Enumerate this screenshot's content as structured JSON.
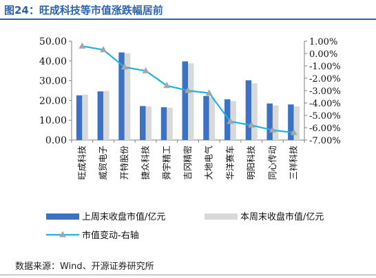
{
  "header": {
    "title": "图24：旺成科技等市值涨跌幅居前"
  },
  "footer": {
    "source": "数据来源：Wind、开源证券研究所"
  },
  "chart_data": {
    "type": "bar",
    "categories": [
      "旺成科技",
      "威贸电子",
      "开特股份",
      "捷众科技",
      "舜宇精工",
      "吉冈精密",
      "大地电气",
      "华洋赛车",
      "明阳科技",
      "同心传动",
      "三祥科技"
    ],
    "series": [
      {
        "name": "上周末收盘市值/亿元",
        "type": "bar",
        "axis": "left",
        "color": "#3b72c4",
        "values": [
          22.6,
          24.6,
          44.3,
          17.2,
          16.6,
          39.8,
          22.3,
          20.6,
          30.2,
          18.5,
          18.0
        ]
      },
      {
        "name": "本周末收盘市值/亿元",
        "type": "bar",
        "axis": "left",
        "color": "#d9d9d9",
        "values": [
          22.9,
          24.8,
          43.9,
          17.0,
          16.3,
          38.8,
          21.4,
          19.7,
          28.7,
          17.5,
          17.0
        ]
      },
      {
        "name": "市值变动-右轴",
        "type": "line",
        "axis": "right",
        "color": "#1fb0e6",
        "marker_color": "#a6a6a6",
        "values": [
          0.6,
          0.3,
          -1.1,
          -1.4,
          -2.6,
          -3.0,
          -3.2,
          -5.5,
          -5.8,
          -6.2,
          -6.4
        ]
      }
    ],
    "y_left": {
      "min": 0,
      "max": 50,
      "ticks": [
        "0.00",
        "10.00",
        "20.00",
        "30.00",
        "40.00",
        "50.00"
      ]
    },
    "y_right": {
      "min": -7,
      "max": 1,
      "ticks": [
        "1.00%",
        "0.00%",
        "-1.00%",
        "-2.00%",
        "-3.00%",
        "-4.00%",
        "-5.00%",
        "-6.00%",
        "-7.00%"
      ]
    },
    "legend_position": "bottom"
  }
}
